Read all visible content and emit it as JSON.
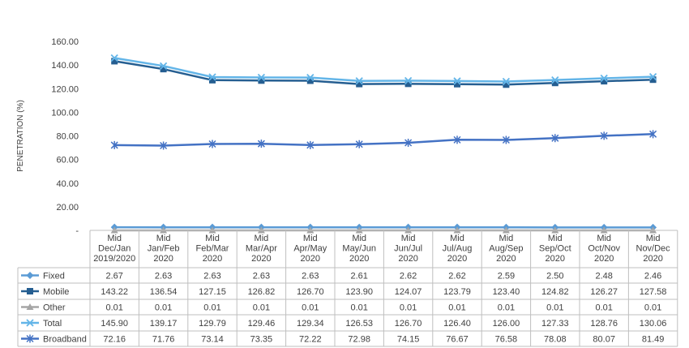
{
  "chart_data": {
    "type": "line",
    "ylabel": "PENETRATION (%)",
    "ylim": [
      0,
      160
    ],
    "y_ticks": [
      "-",
      "20.00",
      "40.00",
      "60.00",
      "80.00",
      "100.00",
      "120.00",
      "140.00",
      "160.00"
    ],
    "grid": false,
    "legend": "data-table",
    "categories": [
      [
        "Mid",
        "Dec/Jan",
        "2019/2020"
      ],
      [
        "Mid",
        "Jan/Feb",
        "2020"
      ],
      [
        "Mid",
        "Feb/Mar",
        "2020"
      ],
      [
        "Mid",
        "Mar/Apr",
        "2020"
      ],
      [
        "Mid",
        "Apr/May",
        "2020"
      ],
      [
        "Mid",
        "May/Jun",
        "2020"
      ],
      [
        "Mid",
        "Jun/Jul",
        "2020"
      ],
      [
        "Mid",
        "Jul/Aug",
        "2020"
      ],
      [
        "Mid",
        "Aug/Sep",
        "2020"
      ],
      [
        "Mid",
        "Sep/Oct",
        "2020"
      ],
      [
        "Mid",
        "Oct/Nov",
        "2020"
      ],
      [
        "Mid",
        "Nov/Dec",
        "2020"
      ]
    ],
    "series": [
      {
        "name": "Fixed",
        "color": "#5b9bd5",
        "marker": "diamond",
        "values": [
          2.67,
          2.63,
          2.63,
          2.63,
          2.63,
          2.61,
          2.62,
          2.62,
          2.59,
          2.5,
          2.48,
          2.46
        ],
        "labels": [
          "2.67",
          "2.63",
          "2.63",
          "2.63",
          "2.63",
          "2.61",
          "2.62",
          "2.62",
          "2.59",
          "2.50",
          "2.48",
          "2.46"
        ]
      },
      {
        "name": "Mobile",
        "color": "#255e91",
        "marker": "square",
        "values": [
          143.22,
          136.54,
          127.15,
          126.82,
          126.7,
          123.9,
          124.07,
          123.79,
          123.4,
          124.82,
          126.27,
          127.58
        ],
        "labels": [
          "143.22",
          "136.54",
          "127.15",
          "126.82",
          "126.70",
          "123.90",
          "124.07",
          "123.79",
          "123.40",
          "124.82",
          "126.27",
          "127.58"
        ]
      },
      {
        "name": "Other",
        "color": "#a5a5a5",
        "marker": "triangle",
        "values": [
          0.01,
          0.01,
          0.01,
          0.01,
          0.01,
          0.01,
          0.01,
          0.01,
          0.01,
          0.01,
          0.01,
          0.01
        ],
        "labels": [
          "0.01",
          "0.01",
          "0.01",
          "0.01",
          "0.01",
          "0.01",
          "0.01",
          "0.01",
          "0.01",
          "0.01",
          "0.01",
          "0.01"
        ]
      },
      {
        "name": "Total",
        "color": "#63b5e8",
        "marker": "x",
        "values": [
          145.9,
          139.17,
          129.79,
          129.46,
          129.34,
          126.53,
          126.7,
          126.4,
          126.0,
          127.33,
          128.76,
          130.06
        ],
        "labels": [
          "145.90",
          "139.17",
          "129.79",
          "129.46",
          "129.34",
          "126.53",
          "126.70",
          "126.40",
          "126.00",
          "127.33",
          "128.76",
          "130.06"
        ]
      },
      {
        "name": "Broadband",
        "color": "#4472c4",
        "marker": "star",
        "values": [
          72.16,
          71.76,
          73.14,
          73.35,
          72.22,
          72.98,
          74.15,
          76.67,
          76.58,
          78.08,
          80.07,
          81.49
        ],
        "labels": [
          "72.16",
          "71.76",
          "73.14",
          "73.35",
          "72.22",
          "72.98",
          "74.15",
          "76.67",
          "76.58",
          "78.08",
          "80.07",
          "81.49"
        ]
      }
    ]
  }
}
